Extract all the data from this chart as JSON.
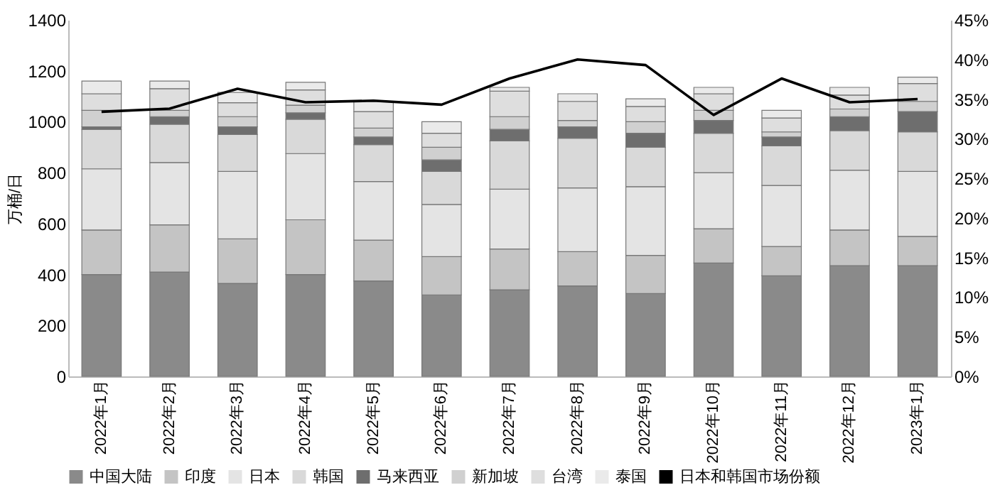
{
  "chart_data": {
    "type": "bar",
    "stacked": true,
    "ylabel": "万桶/日",
    "categories": [
      "2022年1月",
      "2022年2月",
      "2022年3月",
      "2022年4月",
      "2022年5月",
      "2022年6月",
      "2022年7月",
      "2022年8月",
      "2022年9月",
      "2022年10月",
      "2022年11月",
      "2022年12月",
      "2023年1月"
    ],
    "series": [
      {
        "name": "中国大陆",
        "color": "#8a8a8a",
        "values": [
          400,
          410,
          365,
          400,
          375,
          320,
          340,
          355,
          325,
          445,
          395,
          435,
          435
        ]
      },
      {
        "name": "印度",
        "color": "#c4c4c4",
        "values": [
          175,
          185,
          175,
          215,
          160,
          150,
          160,
          135,
          150,
          135,
          115,
          140,
          115
        ]
      },
      {
        "name": "日本",
        "color": "#e4e4e4",
        "values": [
          240,
          245,
          265,
          260,
          230,
          205,
          235,
          250,
          270,
          220,
          240,
          235,
          255
        ]
      },
      {
        "name": "韩国",
        "color": "#d9d9d9",
        "values": [
          155,
          150,
          145,
          135,
          145,
          130,
          190,
          195,
          155,
          155,
          155,
          155,
          155
        ]
      },
      {
        "name": "马来西亚",
        "color": "#6e6e6e",
        "values": [
          10,
          30,
          30,
          25,
          30,
          45,
          45,
          45,
          55,
          50,
          35,
          55,
          80
        ]
      },
      {
        "name": "新加坡",
        "color": "#d0d0d0",
        "values": [
          65,
          25,
          40,
          30,
          35,
          50,
          50,
          25,
          45,
          40,
          20,
          30,
          40
        ]
      },
      {
        "name": "台湾",
        "color": "#dedede",
        "values": [
          65,
          85,
          55,
          60,
          65,
          55,
          100,
          75,
          60,
          65,
          55,
          55,
          70
        ]
      },
      {
        "name": "泰国",
        "color": "#eaeaea",
        "values": [
          50,
          30,
          40,
          30,
          40,
          45,
          15,
          30,
          30,
          25,
          30,
          30,
          25
        ]
      },
      {
        "name": "日本和韩国市场份额",
        "type": "line",
        "axis": "y2",
        "color": "#000000",
        "values": [
          33.4,
          33.8,
          36.3,
          34.6,
          34.8,
          34.3,
          37.6,
          40.0,
          39.3,
          33.0,
          37.6,
          34.6,
          35.0
        ]
      }
    ],
    "ylim": [
      0,
      1400
    ],
    "yticks": [
      0,
      200,
      400,
      600,
      800,
      1000,
      1200,
      1400
    ],
    "y2lim": [
      0,
      45
    ],
    "y2ticks": [
      {
        "value": 0,
        "label": "0%"
      },
      {
        "value": 5,
        "label": "5%"
      },
      {
        "value": 10,
        "label": "10%"
      },
      {
        "value": 15,
        "label": "15%"
      },
      {
        "value": 20,
        "label": "20%"
      },
      {
        "value": 25,
        "label": "25%"
      },
      {
        "value": 30,
        "label": "30%"
      },
      {
        "value": 35,
        "label": "35%"
      },
      {
        "value": 40,
        "label": "40%"
      },
      {
        "value": 45,
        "label": "45%"
      }
    ],
    "legend": "bottom",
    "grid": false
  }
}
